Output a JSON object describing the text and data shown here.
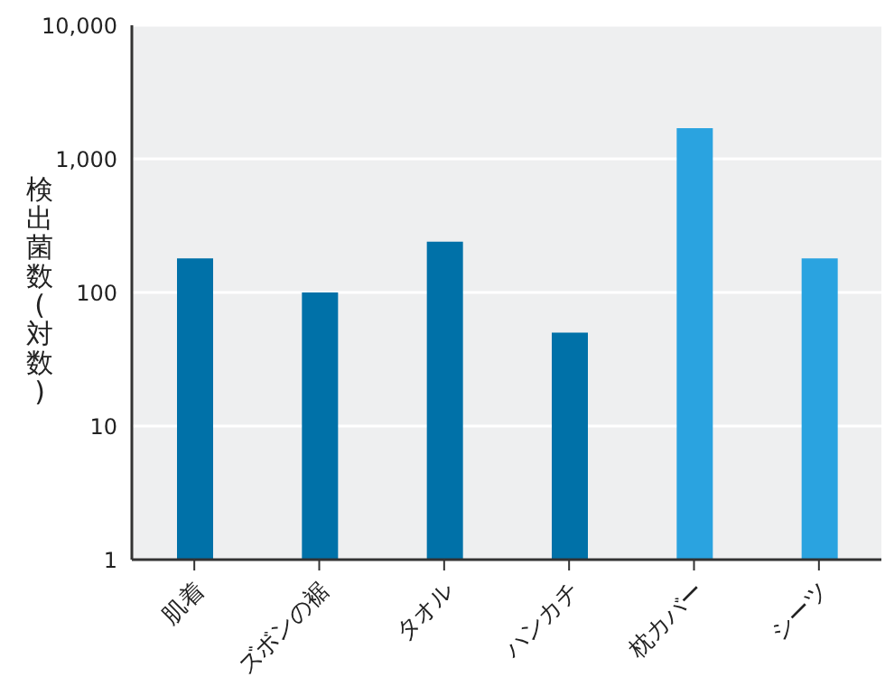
{
  "chart_data": {
    "type": "bar",
    "ylabel": "検出菌数(対数)",
    "categories": [
      "肌着",
      "ズボンの裾",
      "タオル",
      "ハンカチ",
      "枕カバー",
      "シーツ"
    ],
    "values": [
      180,
      100,
      240,
      50,
      1700,
      180
    ],
    "colors": [
      "#0071a8",
      "#0071a8",
      "#0071a8",
      "#0071a8",
      "#2aa3e0",
      "#2aa3e0"
    ],
    "log": true,
    "ylim": [
      1,
      10000
    ],
    "yticks": [
      1,
      10,
      100,
      {
        "value": 1000,
        "label": "1,000"
      },
      {
        "value": 10000,
        "label": "10,000"
      }
    ],
    "grid": "y",
    "legend": false
  }
}
